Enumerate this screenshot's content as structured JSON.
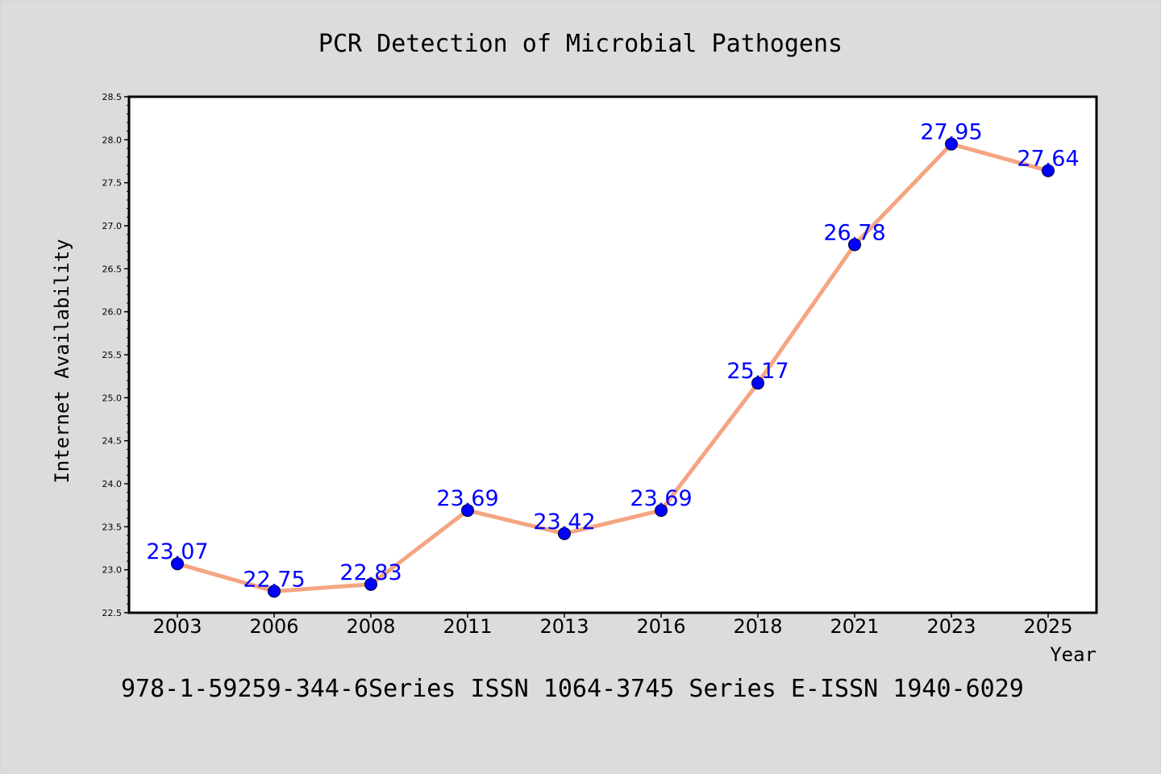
{
  "chart_data": {
    "type": "line",
    "title": "PCR Detection of Microbial Pathogens",
    "xlabel": "Year",
    "ylabel": "Internet Availability",
    "categories": [
      "2003",
      "2006",
      "2008",
      "2011",
      "2013",
      "2016",
      "2018",
      "2021",
      "2023",
      "2025"
    ],
    "series": [
      {
        "values": [
          23.07,
          22.75,
          22.83,
          23.69,
          23.42,
          23.69,
          25.17,
          26.78,
          27.95,
          27.64
        ],
        "data_labels": [
          "23.07",
          "22.75",
          "22.83",
          "23.69",
          "23.42",
          "23.69",
          "25.17",
          "26.78",
          "27.95",
          "27.64"
        ]
      }
    ],
    "ylim": [
      22.5,
      28.5
    ],
    "yticks": [
      "22.5",
      "23.0",
      "23.5",
      "24.0",
      "24.5",
      "25.0",
      "25.5",
      "26.0",
      "26.5",
      "27.0",
      "27.5",
      "28.0",
      "28.5"
    ],
    "grid": false,
    "legend": "none"
  },
  "footer": "978-1-59259-344-6Series ISSN 1064-3745 Series E-ISSN 1940-6029",
  "colors": {
    "page_background": "#dcdcdc",
    "plot_background": "#ffffff",
    "line": "#f4a582",
    "marker": "#0000ff",
    "data_label": "#0000ff"
  }
}
